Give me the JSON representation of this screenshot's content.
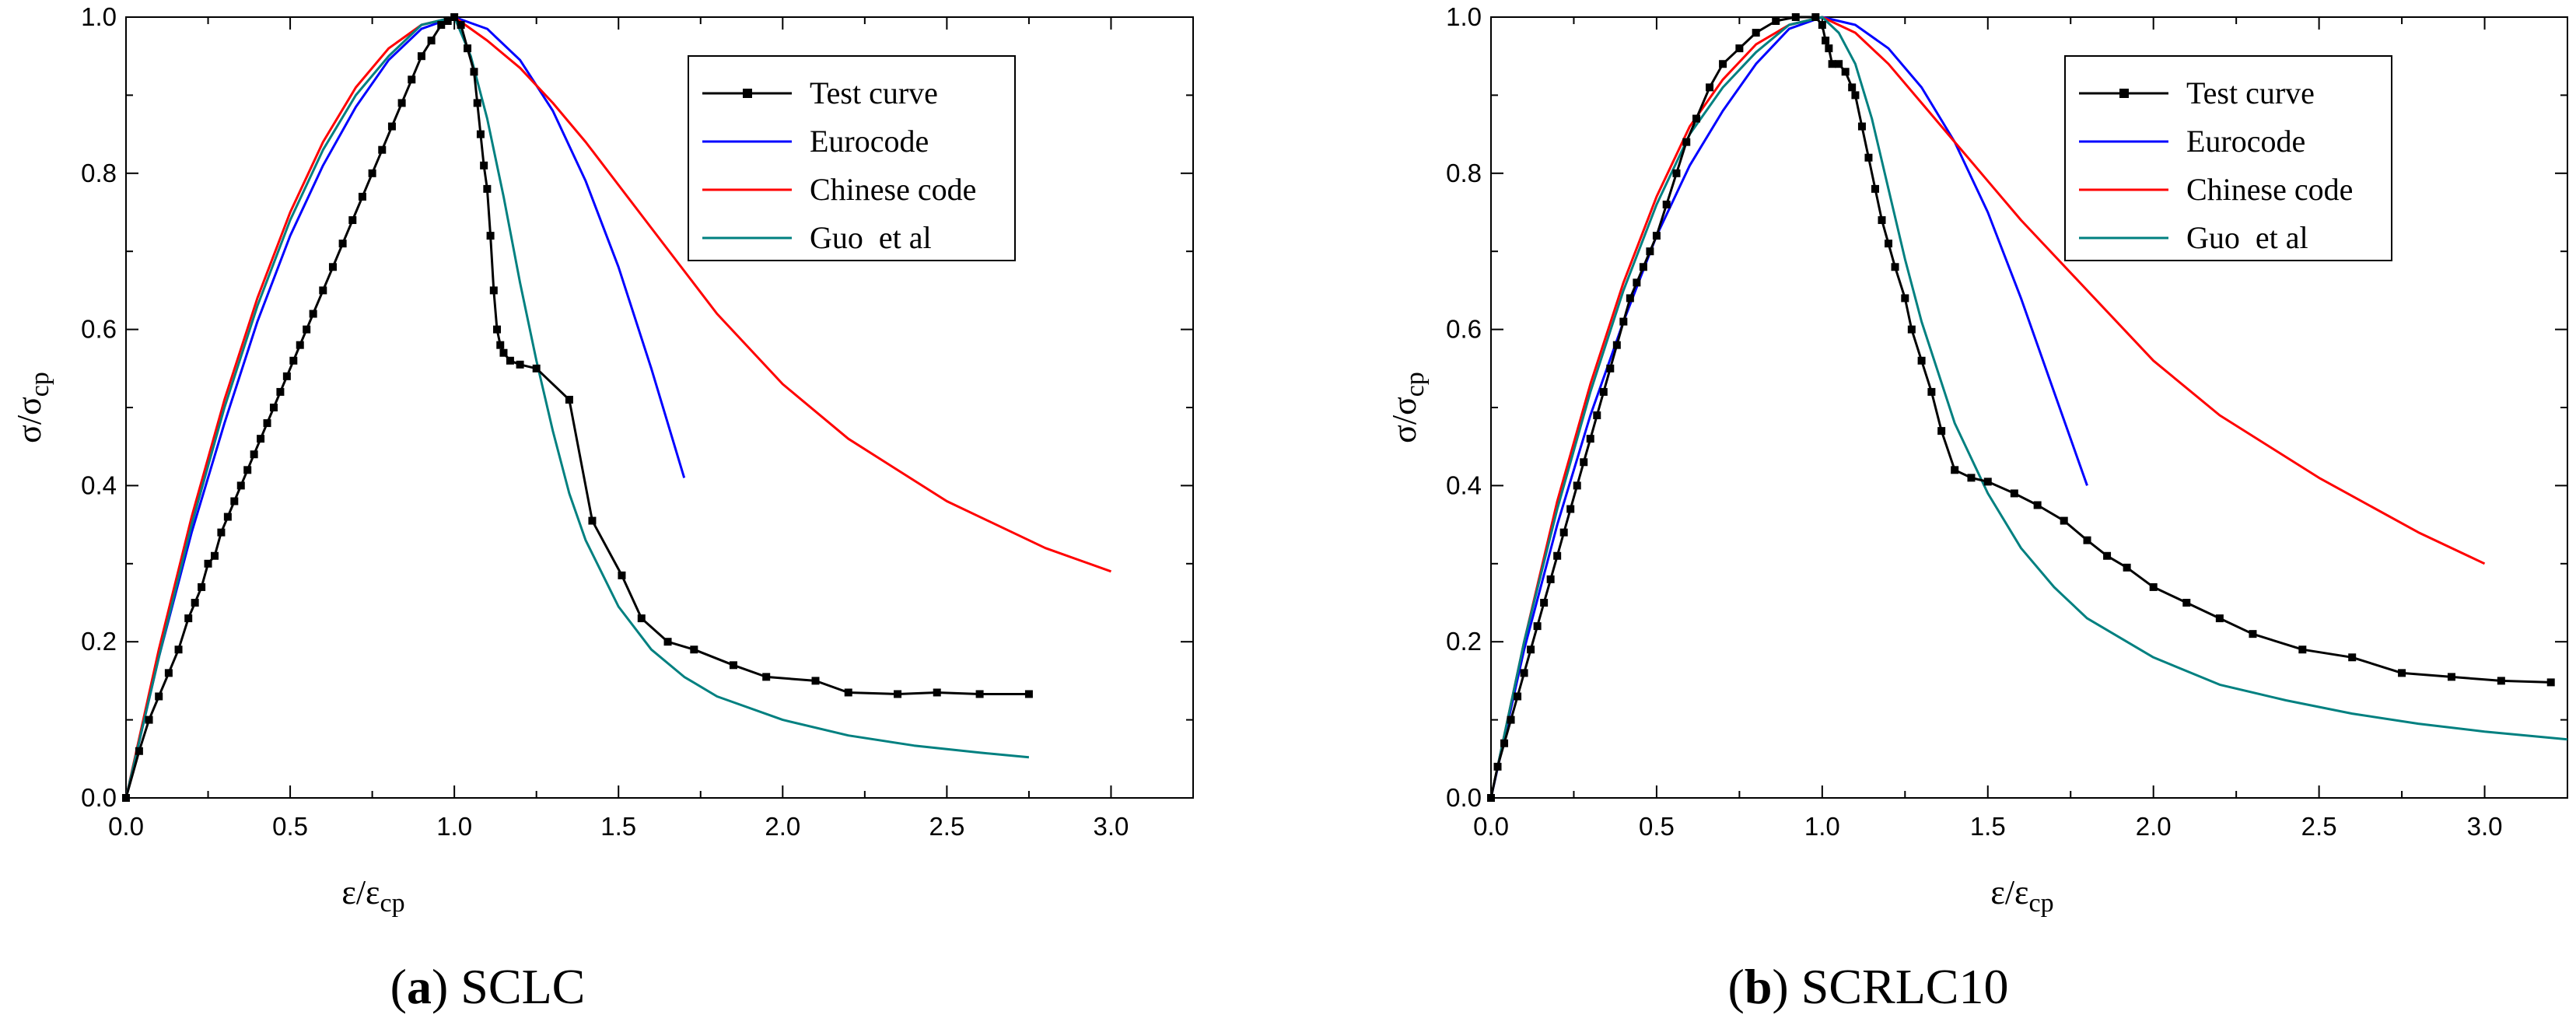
{
  "figure_captions": [
    {
      "open": "(",
      "letter": "a",
      "close": ")",
      "name": "SCLC"
    },
    {
      "open": "(",
      "letter": "b",
      "close": ")",
      "name": "SCRLC10"
    }
  ],
  "chart_data": [
    {
      "type": "line",
      "panel": "a",
      "title": "",
      "xlabel": {
        "main": "ε/ε",
        "sub": "cp"
      },
      "ylabel": {
        "main": "σ/σ",
        "sub": "cp"
      },
      "xlim": [
        0,
        3.25
      ],
      "ylim": [
        0,
        1.0
      ],
      "xticks": [
        0.0,
        0.5,
        1.0,
        1.5,
        2.0,
        2.5,
        3.0
      ],
      "xtick_labels": [
        "0.0",
        "0.5",
        "1.0",
        "1.5",
        "2.0",
        "2.5",
        "3.0"
      ],
      "yticks": [
        0.0,
        0.2,
        0.4,
        0.6,
        0.8,
        1.0
      ],
      "ytick_labels": [
        "0.0",
        "0.2",
        "0.4",
        "0.6",
        "0.8",
        "1.0"
      ],
      "legend_position": "top-right",
      "series": [
        {
          "name": "Test curve",
          "color": "#000000",
          "marker": "square",
          "x": [
            0.0,
            0.04,
            0.07,
            0.1,
            0.13,
            0.16,
            0.19,
            0.21,
            0.23,
            0.25,
            0.27,
            0.29,
            0.31,
            0.33,
            0.35,
            0.37,
            0.39,
            0.41,
            0.43,
            0.45,
            0.47,
            0.49,
            0.51,
            0.53,
            0.55,
            0.57,
            0.6,
            0.63,
            0.66,
            0.69,
            0.72,
            0.75,
            0.78,
            0.81,
            0.84,
            0.87,
            0.9,
            0.93,
            0.96,
            0.98,
            1.0,
            1.02,
            1.04,
            1.06,
            1.07,
            1.08,
            1.09,
            1.1,
            1.11,
            1.12,
            1.13,
            1.14,
            1.15,
            1.17,
            1.2,
            1.25,
            1.35,
            1.42,
            1.51,
            1.57,
            1.65,
            1.73,
            1.85,
            1.95,
            2.1,
            2.2,
            2.35,
            2.47,
            2.6,
            2.75
          ],
          "y": [
            0.0,
            0.06,
            0.1,
            0.13,
            0.16,
            0.19,
            0.23,
            0.25,
            0.27,
            0.3,
            0.31,
            0.34,
            0.36,
            0.38,
            0.4,
            0.42,
            0.44,
            0.46,
            0.48,
            0.5,
            0.52,
            0.54,
            0.56,
            0.58,
            0.6,
            0.62,
            0.65,
            0.68,
            0.71,
            0.74,
            0.77,
            0.8,
            0.83,
            0.86,
            0.89,
            0.92,
            0.95,
            0.97,
            0.99,
            0.995,
            1.0,
            0.99,
            0.96,
            0.93,
            0.89,
            0.85,
            0.81,
            0.78,
            0.72,
            0.65,
            0.6,
            0.58,
            0.57,
            0.56,
            0.555,
            0.55,
            0.51,
            0.355,
            0.285,
            0.23,
            0.2,
            0.19,
            0.17,
            0.155,
            0.15,
            0.135,
            0.133,
            0.135,
            0.133,
            0.133
          ]
        },
        {
          "name": "Eurocode",
          "color": "#0000ff",
          "marker": "none",
          "x": [
            0.0,
            0.1,
            0.2,
            0.3,
            0.4,
            0.5,
            0.6,
            0.7,
            0.8,
            0.9,
            1.0,
            1.1,
            1.2,
            1.3,
            1.4,
            1.5,
            1.6,
            1.7
          ],
          "y": [
            0.0,
            0.18,
            0.34,
            0.48,
            0.61,
            0.72,
            0.81,
            0.885,
            0.945,
            0.985,
            1.0,
            0.985,
            0.945,
            0.88,
            0.79,
            0.68,
            0.55,
            0.41
          ]
        },
        {
          "name": "Chinese code",
          "color": "#ff0000",
          "marker": "none",
          "x": [
            0.0,
            0.1,
            0.2,
            0.3,
            0.4,
            0.5,
            0.6,
            0.7,
            0.8,
            0.9,
            1.0,
            1.1,
            1.2,
            1.3,
            1.4,
            1.5,
            1.6,
            1.8,
            2.0,
            2.2,
            2.5,
            2.8,
            3.0
          ],
          "y": [
            0.0,
            0.19,
            0.36,
            0.51,
            0.64,
            0.75,
            0.84,
            0.91,
            0.96,
            0.99,
            1.0,
            0.97,
            0.935,
            0.89,
            0.84,
            0.785,
            0.73,
            0.62,
            0.53,
            0.46,
            0.38,
            0.32,
            0.29
          ]
        },
        {
          "name": "Guo  et al",
          "color": "#008080",
          "marker": "none",
          "x": [
            0.0,
            0.1,
            0.2,
            0.3,
            0.4,
            0.5,
            0.6,
            0.7,
            0.8,
            0.9,
            1.0,
            1.05,
            1.1,
            1.15,
            1.2,
            1.25,
            1.3,
            1.35,
            1.4,
            1.5,
            1.6,
            1.7,
            1.8,
            2.0,
            2.2,
            2.4,
            2.6,
            2.75
          ],
          "y": [
            0.0,
            0.18,
            0.35,
            0.5,
            0.63,
            0.74,
            0.83,
            0.9,
            0.95,
            0.99,
            1.0,
            0.95,
            0.87,
            0.77,
            0.66,
            0.56,
            0.47,
            0.39,
            0.33,
            0.245,
            0.19,
            0.155,
            0.13,
            0.1,
            0.08,
            0.067,
            0.058,
            0.052
          ]
        }
      ]
    },
    {
      "type": "line",
      "panel": "b",
      "title": "",
      "xlabel": {
        "main": "ε/ε",
        "sub": "cp"
      },
      "ylabel": {
        "main": "σ/σ",
        "sub": "cp"
      },
      "xlim": [
        0,
        3.25
      ],
      "ylim": [
        0,
        1.0
      ],
      "xticks": [
        0.0,
        0.5,
        1.0,
        1.5,
        2.0,
        2.5,
        3.0
      ],
      "xtick_labels": [
        "0.0",
        "0.5",
        "1.0",
        "1.5",
        "2.0",
        "2.5",
        "3.0"
      ],
      "yticks": [
        0.0,
        0.2,
        0.4,
        0.6,
        0.8,
        1.0
      ],
      "ytick_labels": [
        "0.0",
        "0.2",
        "0.4",
        "0.6",
        "0.8",
        "1.0"
      ],
      "legend_position": "top-right",
      "series": [
        {
          "name": "Test curve",
          "color": "#000000",
          "marker": "square",
          "x": [
            0.0,
            0.02,
            0.04,
            0.06,
            0.08,
            0.1,
            0.12,
            0.14,
            0.16,
            0.18,
            0.2,
            0.22,
            0.24,
            0.26,
            0.28,
            0.3,
            0.32,
            0.34,
            0.36,
            0.38,
            0.4,
            0.42,
            0.44,
            0.46,
            0.48,
            0.5,
            0.53,
            0.56,
            0.59,
            0.62,
            0.66,
            0.7,
            0.75,
            0.8,
            0.86,
            0.92,
            0.98,
            1.0,
            1.01,
            1.02,
            1.03,
            1.05,
            1.07,
            1.09,
            1.1,
            1.12,
            1.14,
            1.16,
            1.18,
            1.2,
            1.22,
            1.25,
            1.27,
            1.3,
            1.33,
            1.36,
            1.4,
            1.45,
            1.5,
            1.58,
            1.65,
            1.73,
            1.8,
            1.86,
            1.92,
            2.0,
            2.1,
            2.2,
            2.3,
            2.45,
            2.6,
            2.75,
            2.9,
            3.05,
            3.2
          ],
          "y": [
            0.0,
            0.04,
            0.07,
            0.1,
            0.13,
            0.16,
            0.19,
            0.22,
            0.25,
            0.28,
            0.31,
            0.34,
            0.37,
            0.4,
            0.43,
            0.46,
            0.49,
            0.52,
            0.55,
            0.58,
            0.61,
            0.64,
            0.66,
            0.68,
            0.7,
            0.72,
            0.76,
            0.8,
            0.84,
            0.87,
            0.91,
            0.94,
            0.96,
            0.98,
            0.995,
            1.0,
            1.0,
            0.99,
            0.97,
            0.96,
            0.94,
            0.94,
            0.93,
            0.91,
            0.9,
            0.86,
            0.82,
            0.78,
            0.74,
            0.71,
            0.68,
            0.64,
            0.6,
            0.56,
            0.52,
            0.47,
            0.42,
            0.41,
            0.405,
            0.39,
            0.375,
            0.355,
            0.33,
            0.31,
            0.295,
            0.27,
            0.25,
            0.23,
            0.21,
            0.19,
            0.18,
            0.16,
            0.155,
            0.15,
            0.148
          ]
        },
        {
          "name": "Eurocode",
          "color": "#0000ff",
          "marker": "none",
          "x": [
            0.0,
            0.1,
            0.2,
            0.3,
            0.4,
            0.5,
            0.6,
            0.7,
            0.8,
            0.9,
            1.0,
            1.1,
            1.2,
            1.3,
            1.4,
            1.5,
            1.6,
            1.7,
            1.8
          ],
          "y": [
            0.0,
            0.19,
            0.35,
            0.49,
            0.61,
            0.72,
            0.81,
            0.88,
            0.94,
            0.985,
            1.0,
            0.99,
            0.96,
            0.91,
            0.84,
            0.75,
            0.64,
            0.52,
            0.4
          ]
        },
        {
          "name": "Chinese code",
          "color": "#ff0000",
          "marker": "none",
          "x": [
            0.0,
            0.1,
            0.2,
            0.3,
            0.4,
            0.5,
            0.6,
            0.7,
            0.8,
            0.9,
            1.0,
            1.1,
            1.2,
            1.3,
            1.4,
            1.5,
            1.6,
            1.8,
            2.0,
            2.2,
            2.5,
            2.8,
            3.0
          ],
          "y": [
            0.0,
            0.2,
            0.38,
            0.53,
            0.66,
            0.77,
            0.86,
            0.92,
            0.965,
            0.99,
            1.0,
            0.98,
            0.94,
            0.89,
            0.84,
            0.79,
            0.74,
            0.65,
            0.56,
            0.49,
            0.41,
            0.34,
            0.3
          ]
        },
        {
          "name": "Guo  et al",
          "color": "#008080",
          "marker": "none",
          "x": [
            0.0,
            0.1,
            0.2,
            0.3,
            0.4,
            0.5,
            0.6,
            0.7,
            0.8,
            0.9,
            1.0,
            1.05,
            1.1,
            1.15,
            1.2,
            1.25,
            1.3,
            1.4,
            1.5,
            1.6,
            1.7,
            1.8,
            2.0,
            2.2,
            2.4,
            2.6,
            2.8,
            3.0,
            3.25
          ],
          "y": [
            0.0,
            0.2,
            0.37,
            0.52,
            0.65,
            0.76,
            0.85,
            0.91,
            0.955,
            0.99,
            1.0,
            0.98,
            0.94,
            0.87,
            0.78,
            0.69,
            0.61,
            0.48,
            0.39,
            0.32,
            0.27,
            0.23,
            0.18,
            0.145,
            0.125,
            0.108,
            0.095,
            0.085,
            0.075
          ]
        }
      ]
    }
  ]
}
